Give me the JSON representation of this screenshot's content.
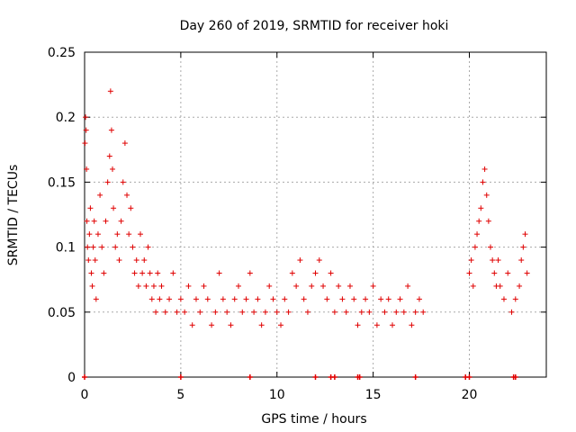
{
  "chart_data": {
    "type": "scatter",
    "title": "Day 260 of 2019, SRMTID for receiver hoki",
    "xlabel": "GPS time / hours",
    "ylabel": "SRMTID / TECUs",
    "xlim": [
      0,
      24
    ],
    "ylim": [
      0,
      0.25
    ],
    "xticks": [
      0,
      5,
      10,
      15,
      20
    ],
    "yticks": [
      0,
      0.05,
      0.1,
      0.15,
      0.2,
      0.25
    ],
    "ytick_labels": [
      "0",
      "0.05",
      "0.1",
      "0.15",
      "0.2",
      "0.25"
    ],
    "grid": true,
    "color": "#e00000",
    "marker": "plus",
    "series": [
      {
        "values_x": [
          0.02,
          0.05,
          0.08,
          0.1,
          0.12,
          0.15,
          0.2,
          0.25,
          0.3,
          0.35,
          0.4,
          0.45,
          0.5,
          0.55,
          0.6,
          0.7,
          0.8,
          0.9,
          1.0,
          1.1,
          1.2,
          1.3,
          1.35,
          1.4,
          1.45,
          1.5,
          1.6,
          1.7,
          1.8,
          1.9,
          2.0,
          2.1,
          2.2,
          2.3,
          2.4,
          2.5,
          2.6,
          2.7,
          2.8,
          2.9,
          3.0,
          3.1,
          3.2,
          3.3,
          3.4,
          3.5,
          3.6,
          3.7,
          3.8,
          3.9,
          4.0,
          4.2,
          4.4,
          4.6,
          4.8,
          5.0,
          5.2,
          5.4,
          5.6,
          5.8,
          6.0,
          6.2,
          6.4,
          6.6,
          6.8,
          7.0,
          7.2,
          7.4,
          7.6,
          7.8,
          8.0,
          8.2,
          8.4,
          8.6,
          8.8,
          9.0,
          9.2,
          9.4,
          9.6,
          9.8,
          10.0,
          10.2,
          10.4,
          10.6,
          10.8,
          11.0,
          11.2,
          11.4,
          11.6,
          11.8,
          12.0,
          12.2,
          12.4,
          12.6,
          12.8,
          13.0,
          13.2,
          13.4,
          13.6,
          13.8,
          14.0,
          14.2,
          14.4,
          14.6,
          14.8,
          15.0,
          15.2,
          15.4,
          15.6,
          15.8,
          16.0,
          16.2,
          16.4,
          16.6,
          16.8,
          17.0,
          17.2,
          17.4,
          17.6,
          20.0,
          20.1,
          20.2,
          20.3,
          20.4,
          20.5,
          20.6,
          20.7,
          20.8,
          20.9,
          21.0,
          21.1,
          21.2,
          21.3,
          21.4,
          21.5,
          21.6,
          21.8,
          22.0,
          22.2,
          22.4,
          22.6,
          22.7,
          22.8,
          22.9,
          23.0
        ],
        "values_y": [
          0.18,
          0.2,
          0.19,
          0.16,
          0.12,
          0.1,
          0.09,
          0.11,
          0.13,
          0.08,
          0.07,
          0.1,
          0.12,
          0.09,
          0.06,
          0.11,
          0.14,
          0.1,
          0.08,
          0.12,
          0.15,
          0.17,
          0.22,
          0.19,
          0.16,
          0.13,
          0.1,
          0.11,
          0.09,
          0.12,
          0.15,
          0.18,
          0.14,
          0.11,
          0.13,
          0.1,
          0.08,
          0.09,
          0.07,
          0.11,
          0.08,
          0.09,
          0.07,
          0.1,
          0.08,
          0.06,
          0.07,
          0.05,
          0.08,
          0.06,
          0.07,
          0.05,
          0.06,
          0.08,
          0.05,
          0.06,
          0.05,
          0.07,
          0.04,
          0.06,
          0.05,
          0.07,
          0.06,
          0.04,
          0.05,
          0.08,
          0.06,
          0.05,
          0.04,
          0.06,
          0.07,
          0.05,
          0.06,
          0.08,
          0.05,
          0.06,
          0.04,
          0.05,
          0.07,
          0.06,
          0.05,
          0.04,
          0.06,
          0.05,
          0.08,
          0.07,
          0.09,
          0.06,
          0.05,
          0.07,
          0.08,
          0.09,
          0.07,
          0.06,
          0.08,
          0.05,
          0.07,
          0.06,
          0.05,
          0.07,
          0.06,
          0.04,
          0.05,
          0.06,
          0.05,
          0.07,
          0.04,
          0.06,
          0.05,
          0.06,
          0.04,
          0.05,
          0.06,
          0.05,
          0.07,
          0.04,
          0.05,
          0.06,
          0.05,
          0.08,
          0.09,
          0.07,
          0.1,
          0.11,
          0.12,
          0.13,
          0.15,
          0.16,
          0.14,
          0.12,
          0.1,
          0.09,
          0.08,
          0.07,
          0.09,
          0.07,
          0.06,
          0.08,
          0.05,
          0.06,
          0.07,
          0.09,
          0.1,
          0.11,
          0.08
        ]
      }
    ],
    "zero_markers_x": [
      0,
      5,
      8.6,
      12,
      12.8,
      13,
      14.2,
      14.3,
      17.2,
      19.8,
      20.0,
      22.3,
      22.4
    ]
  }
}
